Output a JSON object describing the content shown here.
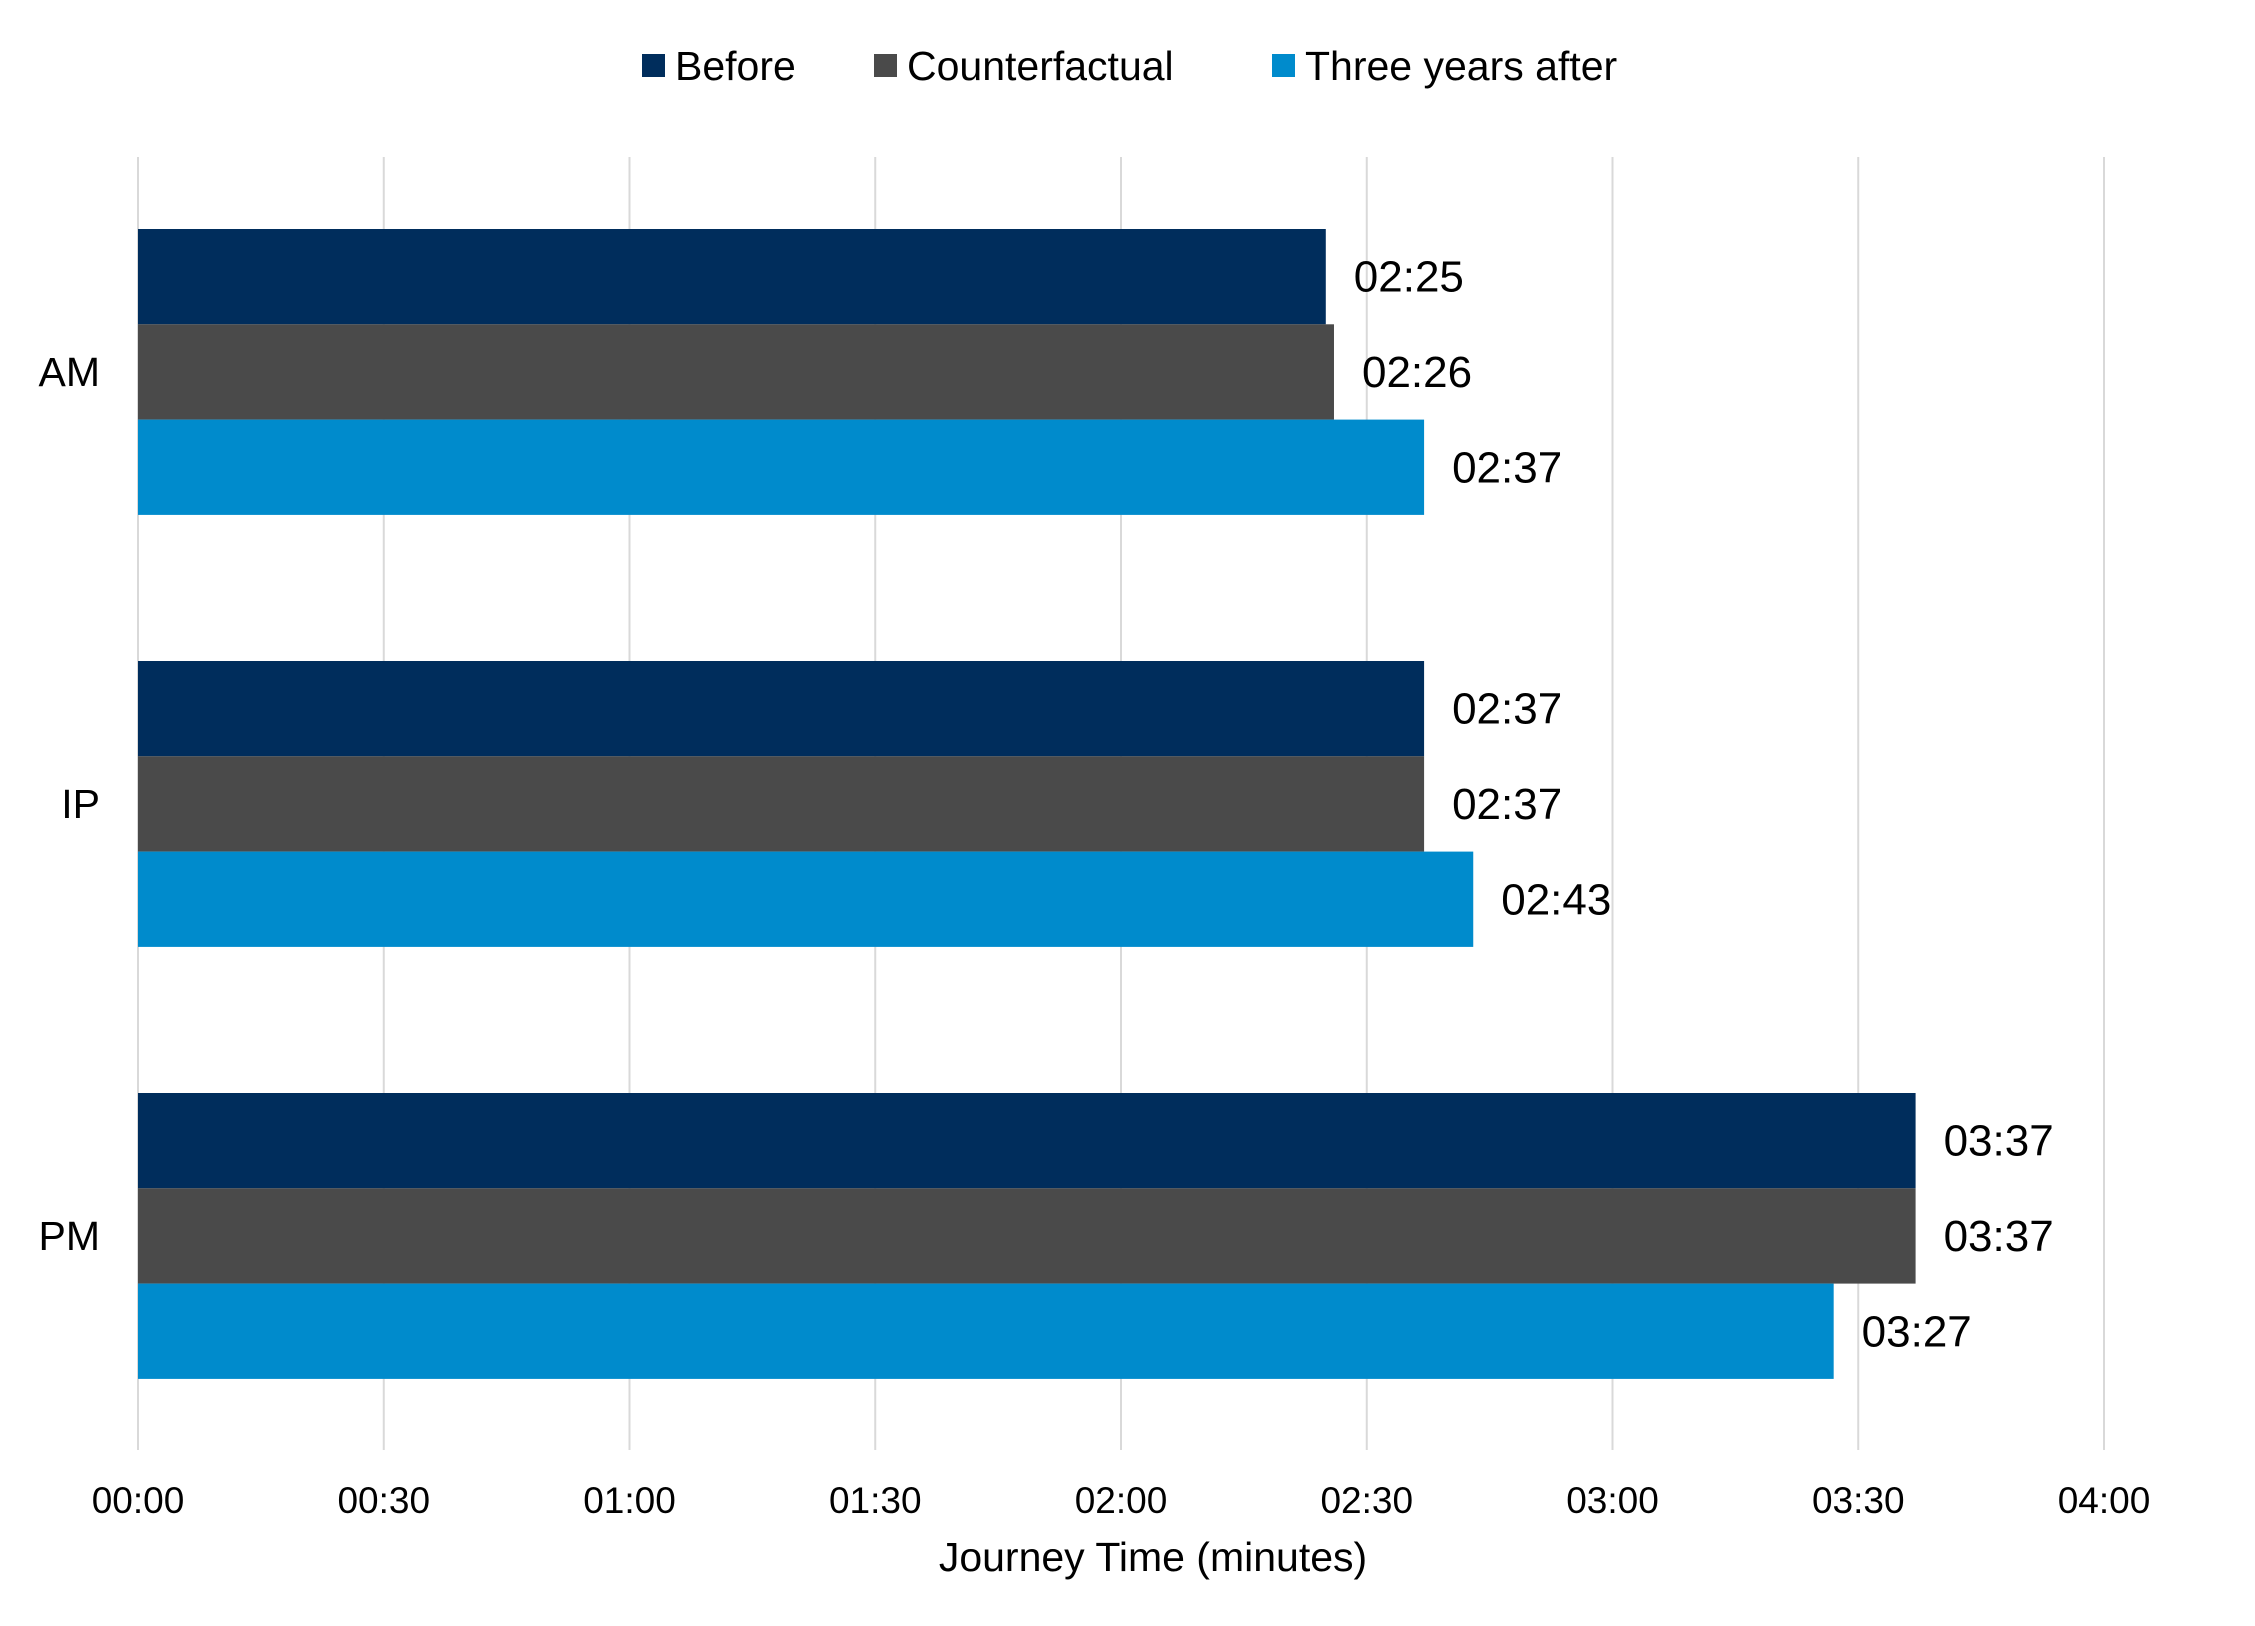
{
  "chart_data": {
    "type": "bar",
    "orientation": "horizontal",
    "categories": [
      "AM",
      "IP",
      "PM"
    ],
    "series": [
      {
        "name": "Before",
        "color": "#002d5c",
        "values": [
          145,
          157,
          217
        ],
        "labels": [
          "02:25",
          "02:37",
          "03:37"
        ]
      },
      {
        "name": "Counterfactual",
        "color": "#4a4a4a",
        "values": [
          146,
          157,
          217
        ],
        "labels": [
          "02:26",
          "02:37",
          "03:37"
        ]
      },
      {
        "name": "Three years after",
        "color": "#008bcc",
        "values": [
          157,
          163,
          207
        ],
        "labels": [
          "02:37",
          "02:43",
          "03:27"
        ]
      }
    ],
    "xlabel": "Journey Time (minutes)",
    "xlim": [
      0,
      240
    ],
    "x_ticks": [
      0,
      30,
      60,
      90,
      120,
      150,
      180,
      210,
      240
    ],
    "x_tick_labels": [
      "00:00",
      "00:30",
      "01:00",
      "01:30",
      "02:00",
      "02:30",
      "03:00",
      "03:30",
      "04:00"
    ],
    "grid": "vertical",
    "legend_position": "top"
  }
}
